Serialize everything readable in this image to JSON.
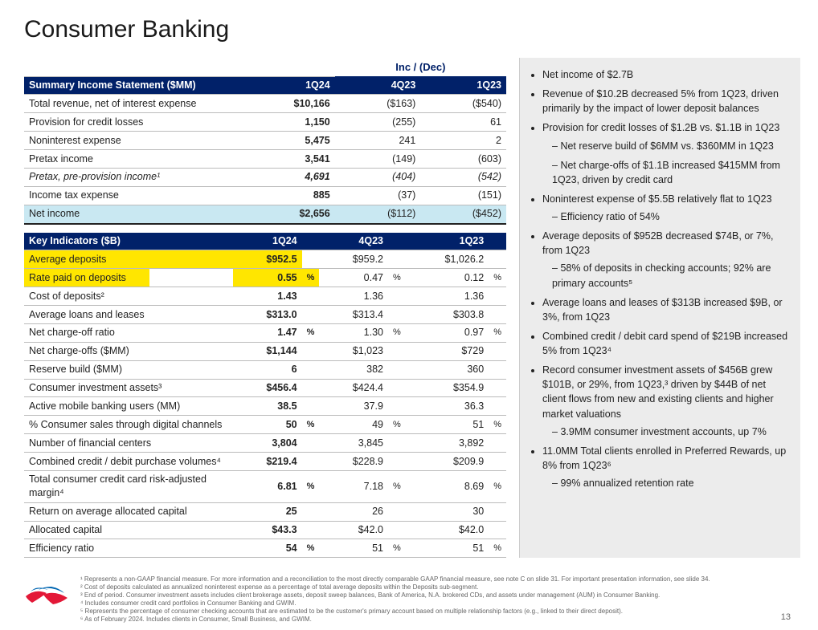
{
  "title": "Consumer Banking",
  "incDecLabel": "Inc / (Dec)",
  "income": {
    "header": "Summary Income Statement ($MM)",
    "cols": [
      "1Q24",
      "4Q23",
      "1Q23"
    ],
    "rows": [
      {
        "label": "Total revenue, net of interest expense",
        "v": [
          "$10,166",
          "($163)",
          "($540)"
        ]
      },
      {
        "label": "Provision for credit losses",
        "v": [
          "1,150",
          "(255)",
          "61"
        ]
      },
      {
        "label": "Noninterest expense",
        "v": [
          "5,475",
          "241",
          "2"
        ]
      },
      {
        "label": "Pretax income",
        "v": [
          "3,541",
          "(149)",
          "(603)"
        ]
      },
      {
        "label": "Pretax, pre-provision income¹",
        "italic": true,
        "v": [
          "4,691",
          "(404)",
          "(542)"
        ]
      },
      {
        "label": "Income tax expense",
        "v": [
          "885",
          "(37)",
          "(151)"
        ]
      },
      {
        "label": "Net income",
        "hl": "blue",
        "dbl": true,
        "v": [
          "$2,656",
          "($112)",
          "($452)"
        ]
      }
    ]
  },
  "indicators": {
    "header": "Key Indicators ($B)",
    "cols": [
      "1Q24",
      "4Q23",
      "1Q23"
    ],
    "rows": [
      {
        "label": "Average deposits",
        "hl": "yellow",
        "v": [
          "$952.5",
          "$959.2",
          "$1,026.2"
        ]
      },
      {
        "label": "Rate paid on deposits",
        "hl": "yellow-partial",
        "pct": true,
        "v": [
          "0.55",
          "0.47",
          "0.12"
        ]
      },
      {
        "label": "Cost of deposits²",
        "v": [
          "1.43",
          "1.36",
          "1.36"
        ]
      },
      {
        "label": "Average loans and leases",
        "v": [
          "$313.0",
          "$313.4",
          "$303.8"
        ]
      },
      {
        "label": "Net charge-off ratio",
        "pct": true,
        "v": [
          "1.47",
          "1.30",
          "0.97"
        ]
      },
      {
        "label": "Net charge-offs ($MM)",
        "v": [
          "$1,144",
          "$1,023",
          "$729"
        ]
      },
      {
        "label": "Reserve build ($MM)",
        "v": [
          "6",
          "382",
          "360"
        ]
      },
      {
        "label": "Consumer investment assets³",
        "v": [
          "$456.4",
          "$424.4",
          "$354.9"
        ]
      },
      {
        "label": "Active mobile banking users (MM)",
        "v": [
          "38.5",
          "37.9",
          "36.3"
        ]
      },
      {
        "label": "% Consumer sales through digital channels",
        "pct": true,
        "v": [
          "50",
          "49",
          "51"
        ]
      },
      {
        "label": "Number of financial centers",
        "v": [
          "3,804",
          "3,845",
          "3,892"
        ]
      },
      {
        "label": "Combined credit / debit purchase volumes⁴",
        "v": [
          "$219.4",
          "$228.9",
          "$209.9"
        ]
      },
      {
        "label": "Total consumer credit card risk-adjusted margin⁴",
        "pct": true,
        "v": [
          "6.81",
          "7.18",
          "8.69"
        ]
      },
      {
        "label": "Return on average allocated capital",
        "v": [
          "25",
          "26",
          "30"
        ]
      },
      {
        "label": "Allocated capital",
        "v": [
          "$43.3",
          "$42.0",
          "$42.0"
        ]
      },
      {
        "label": "Efficiency ratio",
        "pct": true,
        "v": [
          "54",
          "51",
          "51"
        ]
      }
    ]
  },
  "bullets": [
    {
      "t": "Net income of $2.7B"
    },
    {
      "t": "Revenue of $10.2B decreased 5% from 1Q23, driven primarily by the impact of lower deposit balances"
    },
    {
      "t": "Provision for credit losses of $1.2B vs. $1.1B in 1Q23",
      "sub": [
        "Net reserve build of $6MM vs. $360MM in 1Q23",
        "Net charge-offs of $1.1B increased $415MM from 1Q23, driven by credit card"
      ]
    },
    {
      "t": "Noninterest expense of $5.5B relatively flat to 1Q23",
      "sub": [
        "Efficiency ratio of 54%"
      ]
    },
    {
      "t": "Average deposits of $952B decreased $74B, or 7%, from 1Q23",
      "sub": [
        "58% of deposits in checking accounts; 92% are primary accounts⁵"
      ]
    },
    {
      "t": "Average loans and leases of $313B increased $9B, or 3%, from 1Q23"
    },
    {
      "t": "Combined credit / debit card spend of $219B increased 5% from 1Q23⁴"
    },
    {
      "t": "Record consumer investment assets of $456B grew $101B, or 29%, from 1Q23,³ driven by $44B of net client flows from new and existing clients and higher market valuations",
      "sub": [
        "3.9MM consumer investment accounts, up 7%"
      ]
    },
    {
      "t": "11.0MM Total clients enrolled in Preferred Rewards, up 8% from 1Q23⁶",
      "sub": [
        "99% annualized retention rate"
      ]
    }
  ],
  "footnotes": [
    "¹ Represents a non-GAAP financial measure. For more information and a reconciliation to the most directly comparable GAAP financial measure, see note C on slide 31. For important presentation information, see slide 34.",
    "² Cost of deposits calculated as annualized noninterest expense as a percentage of total average deposits within the Deposits sub-segment.",
    "³ End of period. Consumer investment assets includes client brokerage assets, deposit sweep balances, Bank of America, N.A. brokered CDs, and assets under management (AUM) in Consumer Banking.",
    "⁴ Includes consumer credit card portfolios in Consumer Banking and GWIM.",
    "⁵ Represents the percentage of consumer checking accounts that are estimated to be the customer's primary account based on multiple relationship factors (e.g., linked to their direct deposit).",
    "⁶ As of February 2024. Includes clients in Consumer, Small Business, and GWIM."
  ],
  "pageNumber": "13",
  "colors": {
    "navy": "#012169",
    "highlightBlue": "#c9e8f2",
    "highlightYellow": "#ffe600",
    "red": "#e31837",
    "blue": "#0066b2"
  }
}
